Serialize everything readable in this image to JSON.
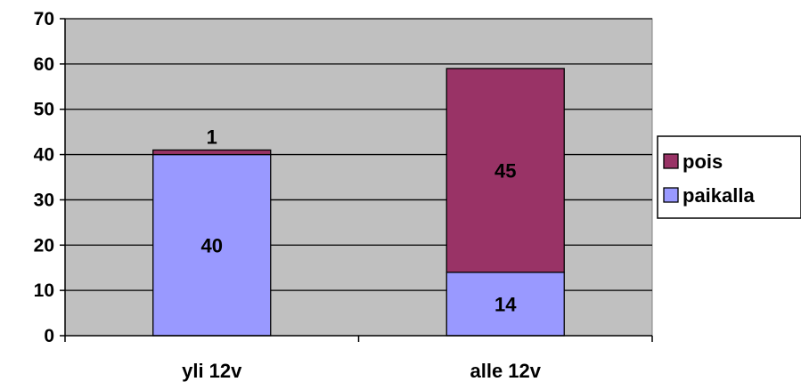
{
  "chart_data": {
    "type": "bar",
    "stacked": true,
    "categories": [
      "yli 12v",
      "alle 12v"
    ],
    "series": [
      {
        "name": "paikalla",
        "values": [
          40,
          14
        ],
        "color": "#9999FF"
      },
      {
        "name": "pois",
        "values": [
          1,
          45
        ],
        "color": "#993366"
      }
    ],
    "ylim": [
      0,
      70
    ],
    "yticks": [
      0,
      10,
      20,
      30,
      40,
      50,
      60,
      70
    ],
    "grid": true,
    "plot_background": "#C0C0C0",
    "legend_position": "right",
    "legend_order": [
      "pois",
      "paikalla"
    ],
    "title": "",
    "xlabel": "",
    "ylabel": ""
  }
}
